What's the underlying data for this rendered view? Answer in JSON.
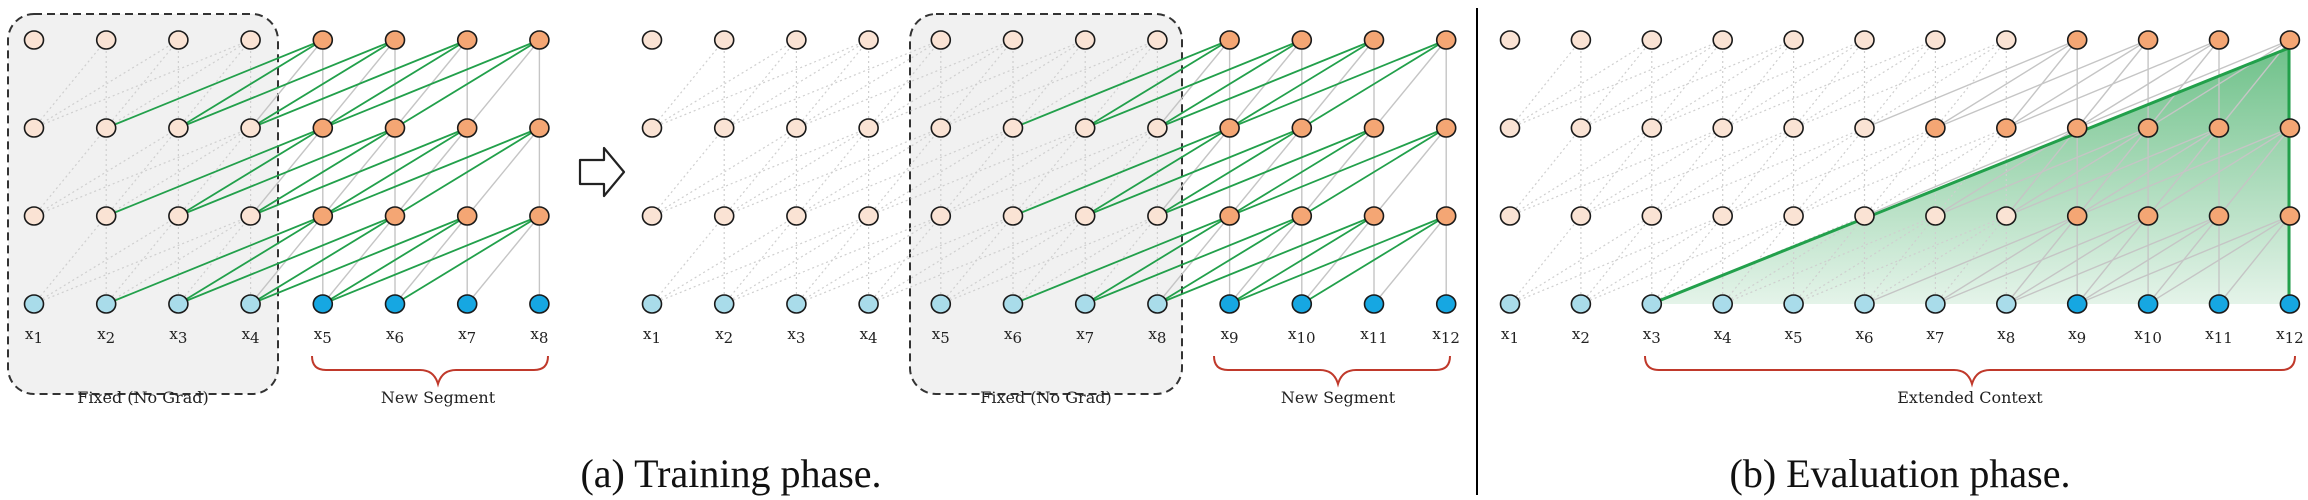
{
  "colors": {
    "hidden_fixed": "#fae3d4",
    "hidden_new": "#f4a674",
    "input_fixed": "#a9dcea",
    "input_new": "#16a7e2",
    "grad_edge": "#22a04b",
    "edge": "#c5c5c5",
    "dotted_edge": "#cfcfcf",
    "brace": "#c0392b",
    "box_fill": "#f1f1f1",
    "divider": "#000000"
  },
  "panel_a": {
    "caption": "(a) Training phase.",
    "arrow_icon": "right-arrow-icon",
    "step1": {
      "tokens": [
        "1",
        "2",
        "3",
        "4",
        "5",
        "6",
        "7",
        "8"
      ],
      "fixed_label": "Fixed (No Grad)",
      "new_label": "New Segment"
    },
    "step2": {
      "tokens": [
        "1",
        "2",
        "3",
        "4",
        "5",
        "6",
        "7",
        "8",
        "9",
        "10",
        "11",
        "12"
      ],
      "fixed_label": "Fixed (No Grad)",
      "new_label": "New Segment"
    }
  },
  "panel_b": {
    "caption": "(b) Evaluation phase.",
    "tokens": [
      "1",
      "2",
      "3",
      "4",
      "5",
      "6",
      "7",
      "8",
      "9",
      "10",
      "11",
      "12"
    ],
    "context_label": "Extended Context"
  }
}
